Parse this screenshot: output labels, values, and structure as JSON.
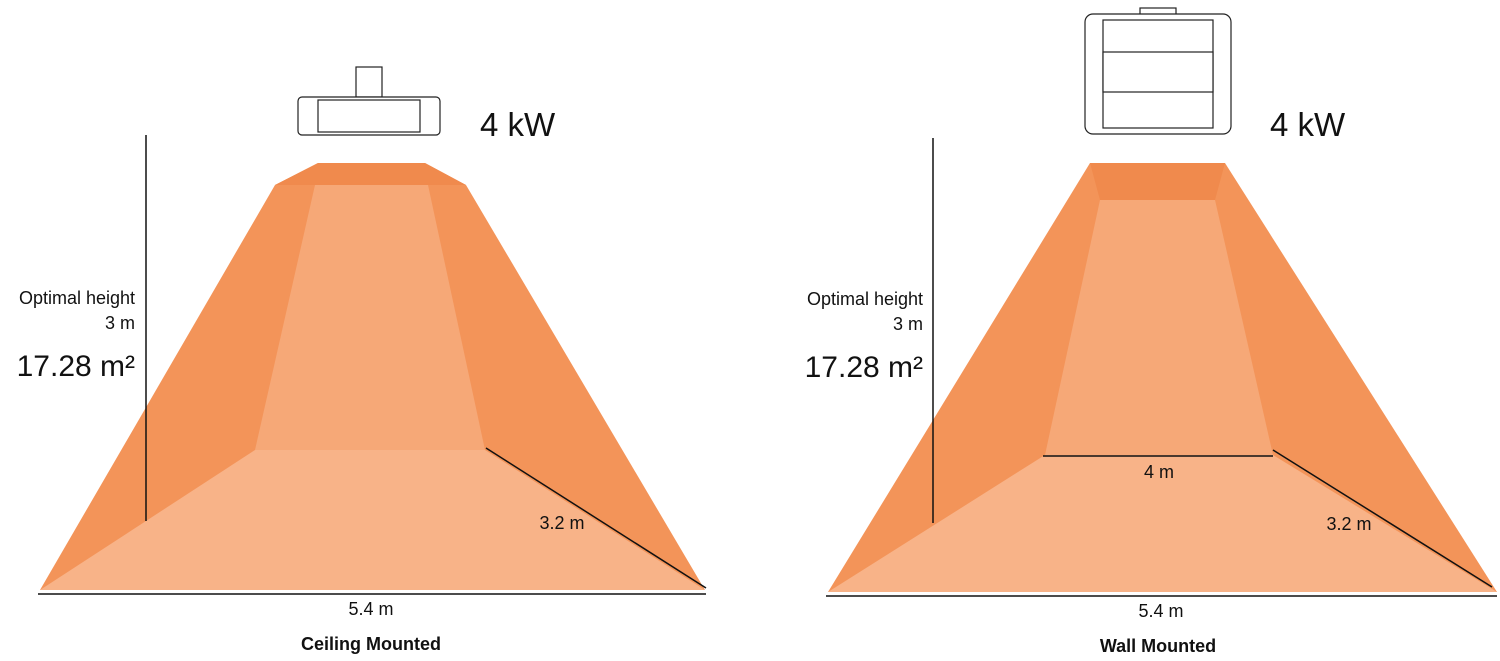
{
  "panels": [
    {
      "power": "4 kW",
      "height_label": "Optimal height",
      "height": "3 m",
      "area": "17.28 m²",
      "depth": "3.2 m",
      "width": "5.4 m",
      "caption": "Ceiling Mounted"
    },
    {
      "power": "4 kW",
      "height_label": "Optimal height",
      "height": "3 m",
      "area": "17.28 m²",
      "front_width": "4 m",
      "depth": "3.2 m",
      "width": "5.4 m",
      "caption": "Wall Mounted"
    }
  ]
}
